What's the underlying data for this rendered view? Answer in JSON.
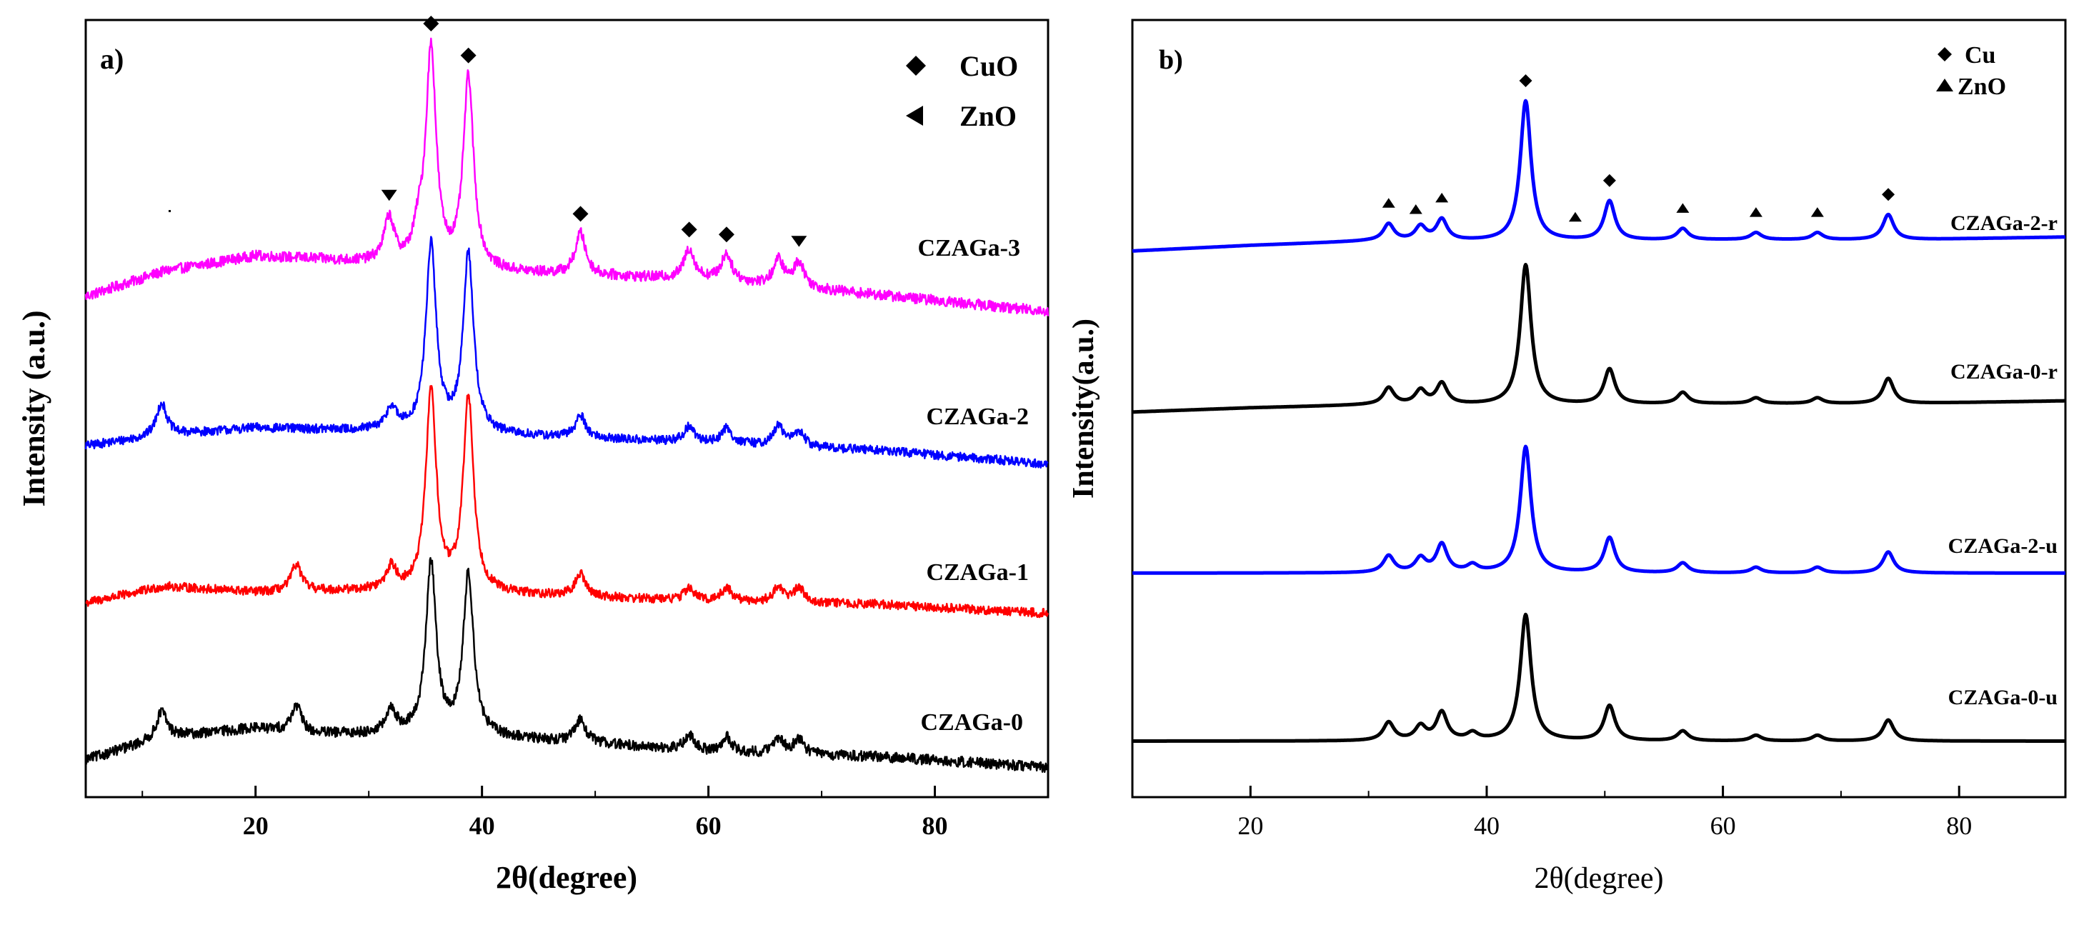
{
  "chart_data": [
    {
      "type": "line",
      "panel_label": "a)",
      "xlabel": "2θ(degree)",
      "ylabel": "Intensity (a.u.)",
      "xlim": [
        5,
        90
      ],
      "xticks": [
        20,
        40,
        60,
        80
      ],
      "legend": [
        {
          "symbol": "diamond",
          "label": "CuO"
        },
        {
          "symbol": "triangle-left",
          "label": "ZnO"
        }
      ],
      "series": [
        {
          "name": "CZAGa-3",
          "color": "#ff00ff",
          "offset": 2.55,
          "baseline": [
            [
              5,
              0.05
            ],
            [
              12,
              0.22
            ],
            [
              20,
              0.32
            ],
            [
              25,
              0.3
            ],
            [
              30,
              0.27
            ],
            [
              36,
              0.22
            ],
            [
              45,
              0.2
            ],
            [
              60,
              0.16
            ],
            [
              75,
              0.06
            ],
            [
              90,
              -0.05
            ]
          ],
          "peaks": [
            [
              31.8,
              0.3
            ],
            [
              34.4,
              0.18
            ],
            [
              35.5,
              1.45
            ],
            [
              38.8,
              1.28
            ],
            [
              48.7,
              0.28
            ],
            [
              58.3,
              0.2
            ],
            [
              61.6,
              0.18
            ],
            [
              66.2,
              0.17
            ],
            [
              68.0,
              0.17
            ]
          ],
          "noise": 0.035,
          "markers": [
            {
              "symbol": "triangle-down",
              "x": 31.8
            },
            {
              "symbol": "diamond",
              "x": 35.5
            },
            {
              "symbol": "diamond",
              "x": 38.8
            },
            {
              "symbol": "diamond",
              "x": 48.7
            },
            {
              "symbol": "diamond",
              "x": 58.3
            },
            {
              "symbol": "diamond",
              "x": 61.6
            },
            {
              "symbol": "triangle-down",
              "x": 68.0
            }
          ]
        },
        {
          "name": "CZAGa-2",
          "color": "#0000ff",
          "offset": 1.5,
          "baseline": [
            [
              5,
              0.1
            ],
            [
              12,
              0.17
            ],
            [
              20,
              0.22
            ],
            [
              30,
              0.2
            ],
            [
              45,
              0.16
            ],
            [
              60,
              0.12
            ],
            [
              75,
              0.07
            ],
            [
              90,
              -0.02
            ]
          ],
          "peaks": [
            [
              11.7,
              0.22
            ],
            [
              32.0,
              0.15
            ],
            [
              35.5,
              1.25
            ],
            [
              38.8,
              1.2
            ],
            [
              48.7,
              0.15
            ],
            [
              58.3,
              0.1
            ],
            [
              61.6,
              0.1
            ],
            [
              66.2,
              0.13
            ],
            [
              68.0,
              0.1
            ]
          ],
          "noise": 0.03,
          "markers": []
        },
        {
          "name": "CZAGa-1",
          "color": "#ff0000",
          "offset": 0.5,
          "baseline": [
            [
              5,
              0.05
            ],
            [
              12,
              0.16
            ],
            [
              20,
              0.12
            ],
            [
              30,
              0.13
            ],
            [
              45,
              0.1
            ],
            [
              60,
              0.06
            ],
            [
              75,
              0.04
            ],
            [
              90,
              -0.02
            ]
          ],
          "peaks": [
            [
              23.6,
              0.18
            ],
            [
              32.0,
              0.15
            ],
            [
              35.5,
              1.35
            ],
            [
              38.8,
              1.3
            ],
            [
              48.7,
              0.15
            ],
            [
              58.3,
              0.08
            ],
            [
              61.6,
              0.09
            ],
            [
              66.2,
              0.1
            ],
            [
              68.0,
              0.1
            ]
          ],
          "noise": 0.03,
          "markers": []
        },
        {
          "name": "CZAGa-0",
          "color": "#000000",
          "offset": -0.55,
          "baseline": [
            [
              5,
              0.05
            ],
            [
              12,
              0.2
            ],
            [
              20,
              0.26
            ],
            [
              25,
              0.22
            ],
            [
              30,
              0.22
            ],
            [
              40,
              0.2
            ],
            [
              50,
              0.16
            ],
            [
              60,
              0.1
            ],
            [
              75,
              0.07
            ],
            [
              90,
              0.0
            ]
          ],
          "peaks": [
            [
              11.7,
              0.18
            ],
            [
              23.6,
              0.18
            ],
            [
              32.0,
              0.15
            ],
            [
              35.5,
              1.15
            ],
            [
              38.8,
              1.08
            ],
            [
              48.7,
              0.15
            ],
            [
              58.3,
              0.1
            ],
            [
              61.6,
              0.1
            ],
            [
              66.2,
              0.1
            ],
            [
              68.0,
              0.1
            ]
          ],
          "noise": 0.035,
          "markers": []
        }
      ]
    },
    {
      "type": "line",
      "panel_label": "b)",
      "xlabel": "2θ(degree)",
      "ylabel": "Intensity(a.u.)",
      "xlim": [
        10,
        89
      ],
      "xticks": [
        20,
        40,
        60,
        80
      ],
      "legend": [
        {
          "symbol": "diamond",
          "label": "Cu"
        },
        {
          "symbol": "triangle-up",
          "label": "ZnO"
        }
      ],
      "series": [
        {
          "name": "CZAGa-2-r",
          "color": "#0000ff",
          "offset": 3.3,
          "baseline": [
            [
              10,
              0.0
            ],
            [
              20,
              0.04
            ],
            [
              30,
              0.07
            ],
            [
              45,
              0.07
            ],
            [
              60,
              0.08
            ],
            [
              75,
              0.08
            ],
            [
              89,
              0.1
            ]
          ],
          "peaks": [
            [
              31.7,
              0.12
            ],
            [
              34.4,
              0.1
            ],
            [
              36.2,
              0.15
            ],
            [
              43.3,
              1.0
            ],
            [
              50.4,
              0.28
            ],
            [
              56.6,
              0.08
            ],
            [
              62.8,
              0.05
            ],
            [
              68.0,
              0.05
            ],
            [
              74.0,
              0.18
            ]
          ],
          "noise": 0.0,
          "markers": [
            {
              "symbol": "triangle-up",
              "x": 31.7
            },
            {
              "symbol": "triangle-up",
              "x": 34.0
            },
            {
              "symbol": "triangle-up",
              "x": 36.2
            },
            {
              "symbol": "diamond",
              "x": 43.3
            },
            {
              "symbol": "triangle-up",
              "x": 47.5
            },
            {
              "symbol": "diamond",
              "x": 50.4
            },
            {
              "symbol": "triangle-up",
              "x": 56.6
            },
            {
              "symbol": "triangle-up",
              "x": 62.8
            },
            {
              "symbol": "triangle-up",
              "x": 68.0
            },
            {
              "symbol": "diamond",
              "x": 74.0
            }
          ]
        },
        {
          "name": "CZAGa-0-r",
          "color": "#000000",
          "offset": 2.15,
          "baseline": [
            [
              10,
              0.0
            ],
            [
              20,
              0.03
            ],
            [
              30,
              0.05
            ],
            [
              45,
              0.05
            ],
            [
              60,
              0.06
            ],
            [
              75,
              0.06
            ],
            [
              89,
              0.08
            ]
          ],
          "peaks": [
            [
              31.7,
              0.12
            ],
            [
              34.4,
              0.1
            ],
            [
              36.2,
              0.15
            ],
            [
              43.3,
              1.0
            ],
            [
              50.4,
              0.25
            ],
            [
              56.6,
              0.08
            ],
            [
              62.8,
              0.04
            ],
            [
              68.0,
              0.04
            ],
            [
              74.0,
              0.18
            ]
          ],
          "noise": 0.0,
          "markers": []
        },
        {
          "name": "CZAGa-2-u",
          "color": "#0000ff",
          "offset": 1.0,
          "baseline": [
            [
              10,
              0.0
            ],
            [
              30,
              0.0
            ],
            [
              60,
              0.0
            ],
            [
              89,
              0.0
            ]
          ],
          "peaks": [
            [
              31.7,
              0.12
            ],
            [
              34.4,
              0.1
            ],
            [
              36.2,
              0.2
            ],
            [
              38.8,
              0.05
            ],
            [
              43.3,
              0.9
            ],
            [
              50.4,
              0.25
            ],
            [
              56.6,
              0.07
            ],
            [
              62.8,
              0.04
            ],
            [
              68.0,
              0.04
            ],
            [
              74.0,
              0.15
            ]
          ],
          "noise": 0.0,
          "markers": []
        },
        {
          "name": "CZAGa-0-u",
          "color": "#000000",
          "offset": -0.2,
          "baseline": [
            [
              10,
              0.0
            ],
            [
              30,
              0.0
            ],
            [
              60,
              0.0
            ],
            [
              89,
              0.0
            ]
          ],
          "peaks": [
            [
              31.7,
              0.13
            ],
            [
              34.4,
              0.1
            ],
            [
              36.2,
              0.2
            ],
            [
              38.8,
              0.05
            ],
            [
              43.3,
              0.9
            ],
            [
              50.4,
              0.25
            ],
            [
              56.6,
              0.07
            ],
            [
              62.8,
              0.04
            ],
            [
              68.0,
              0.04
            ],
            [
              74.0,
              0.15
            ]
          ],
          "noise": 0.0,
          "markers": []
        }
      ]
    }
  ]
}
